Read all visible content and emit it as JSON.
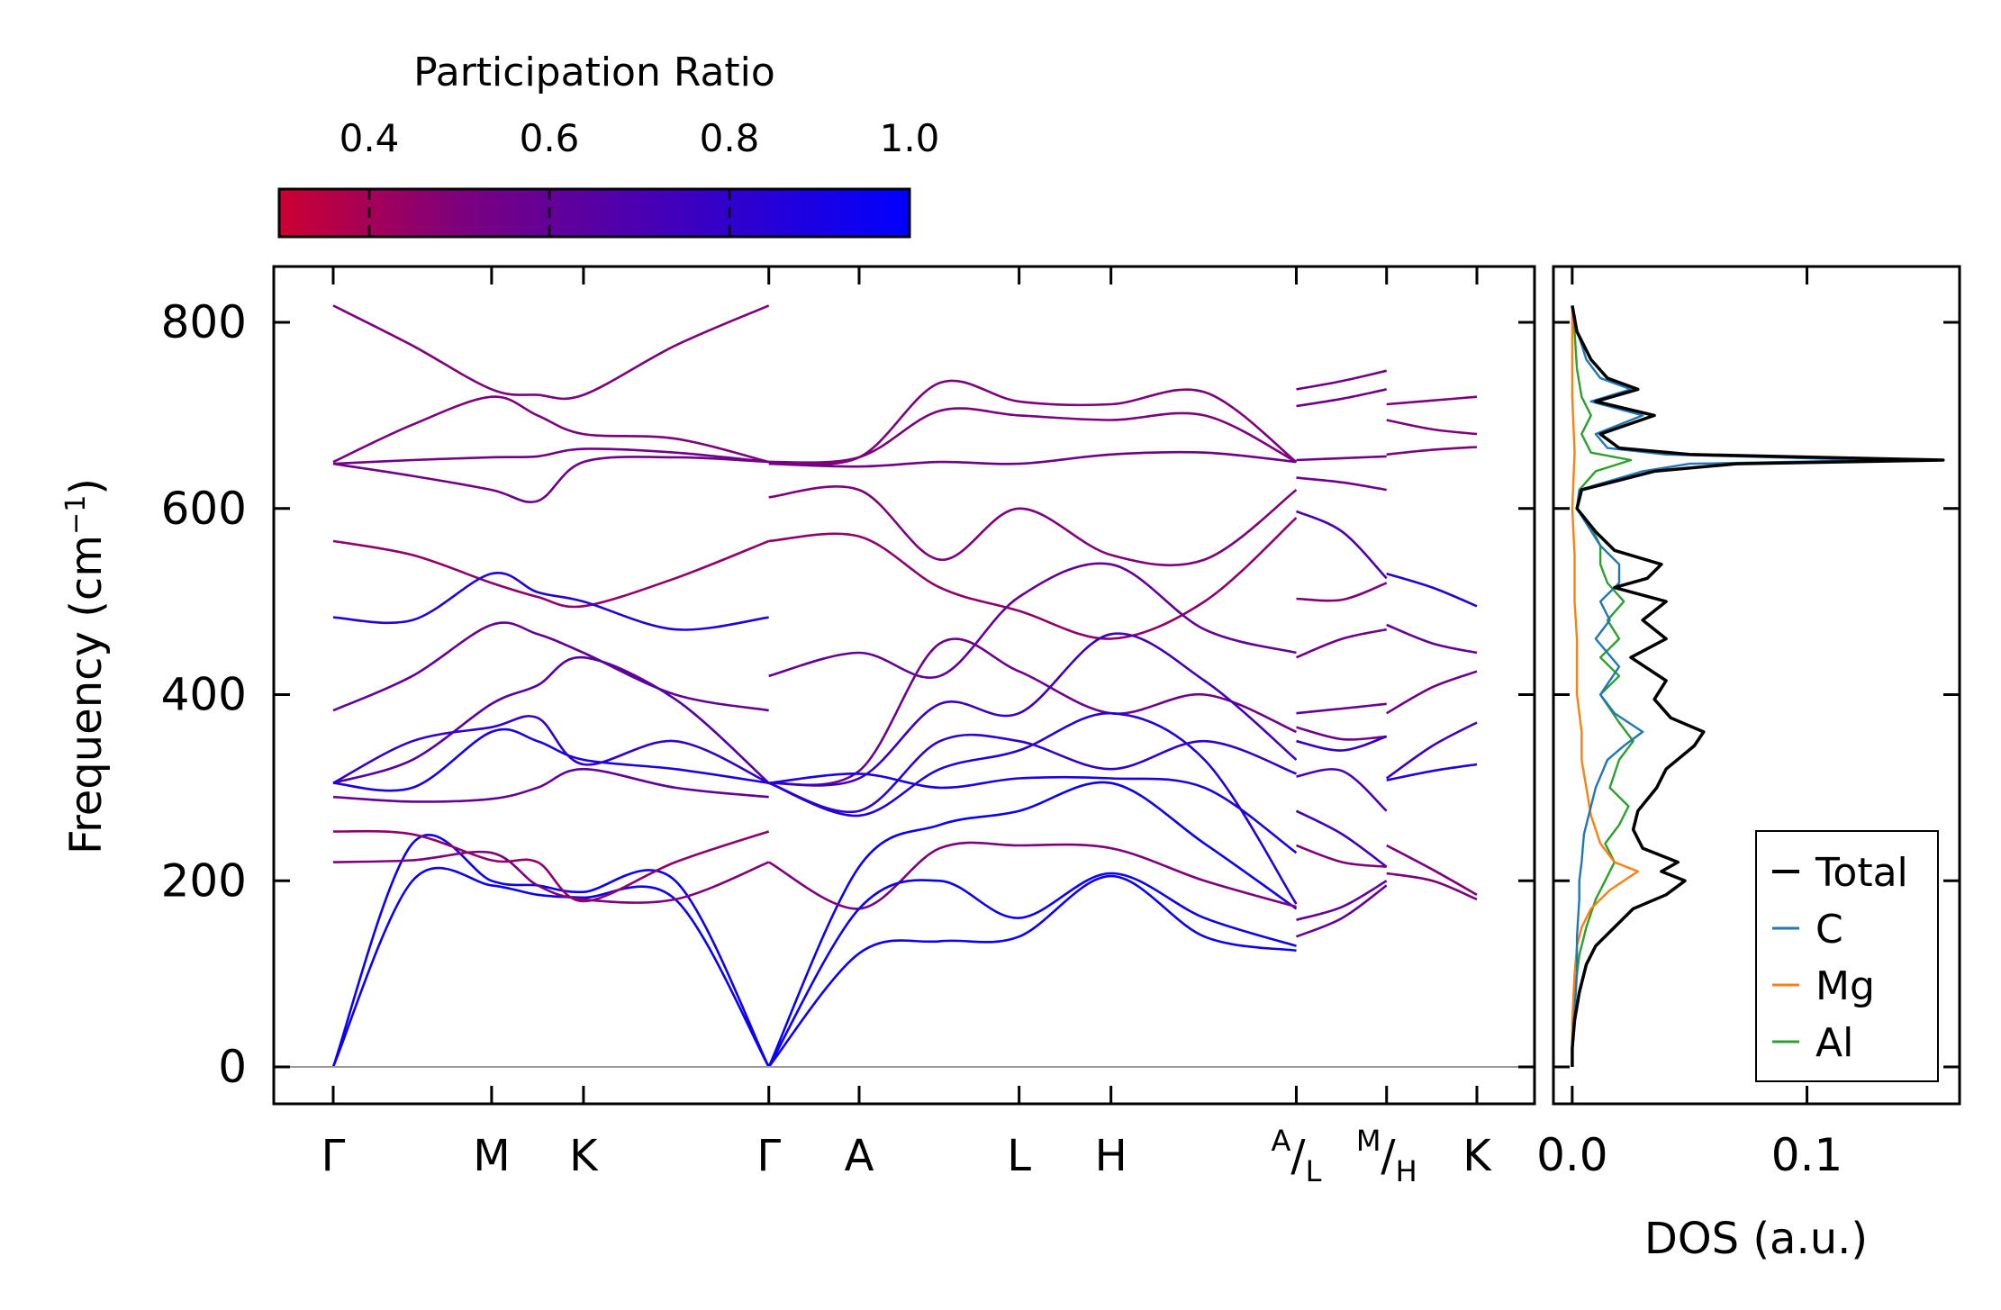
{
  "chart_data": [
    {
      "type": "line",
      "title": "",
      "xlabel": "",
      "ylabel": "Frequency (cm⁻¹)",
      "ylabel_main": "Frequency (cm",
      "ylabel_sup": "−1",
      "ylabel_close": ")",
      "ylim": [
        -40,
        855
      ],
      "yticks": [
        0,
        200,
        400,
        600,
        800
      ],
      "ytick_labels": [
        "0",
        "200",
        "400",
        "600",
        "800"
      ],
      "high_symmetry_points": [
        {
          "label": "Γ",
          "sub": "",
          "x": 0.0
        },
        {
          "label": "M",
          "sub": "",
          "x": 1.0
        },
        {
          "label": "K",
          "sub": "",
          "x": 1.58
        },
        {
          "label": "Γ",
          "sub": "",
          "x": 2.75
        },
        {
          "label": "A",
          "sub": "",
          "x": 3.32
        },
        {
          "label": "L",
          "sub": "",
          "x": 4.33
        },
        {
          "label": "H",
          "sub": "",
          "x": 4.91
        },
        {
          "label": "A",
          "sub": "L",
          "x": 6.08
        },
        {
          "label": "M",
          "sub": "H",
          "x": 6.65
        },
        {
          "label": "K",
          "sub": "",
          "x": 7.22
        }
      ],
      "colorbar": {
        "label": "Participation Ratio",
        "range": [
          0.3,
          1.0
        ],
        "ticks": [
          0.4,
          0.6,
          0.8,
          1.0
        ],
        "tick_labels": [
          "0.4",
          "0.6",
          "0.8",
          "1.0"
        ],
        "low_color": "#cc0033",
        "mid_color": "#7a0080",
        "high_color": "#0000ff"
      },
      "segments": [
        {
          "name": "Γ-M-K-Γ",
          "x": [
            0.0,
            0.5,
            1.0,
            1.29,
            1.58,
            2.16,
            2.75
          ],
          "bands": [
            {
              "pr": 0.5,
              "y": [
                818,
                775,
                728,
                722,
                722,
                775,
                818
              ]
            },
            {
              "pr": 0.5,
              "y": [
                650,
                690,
                720,
                700,
                680,
                675,
                650
              ]
            },
            {
              "pr": 0.55,
              "y": [
                648,
                652,
                655,
                656,
                664,
                660,
                650
              ]
            },
            {
              "pr": 0.55,
              "y": [
                648,
                635,
                620,
                608,
                650,
                655,
                650
              ]
            },
            {
              "pr": 0.45,
              "y": [
                565,
                550,
                520,
                505,
                495,
                525,
                565
              ]
            },
            {
              "pr": 0.85,
              "y": [
                483,
                480,
                530,
                510,
                500,
                470,
                483
              ]
            },
            {
              "pr": 0.6,
              "y": [
                383,
                420,
                475,
                465,
                445,
                400,
                383
              ]
            },
            {
              "pr": 0.65,
              "y": [
                305,
                330,
                390,
                410,
                440,
                395,
                305
              ]
            },
            {
              "pr": 0.8,
              "y": [
                305,
                350,
                365,
                375,
                325,
                350,
                305
              ]
            },
            {
              "pr": 0.6,
              "y": [
                290,
                285,
                288,
                300,
                320,
                300,
                290
              ]
            },
            {
              "pr": 0.9,
              "y": [
                305,
                300,
                360,
                350,
                330,
                320,
                305
              ]
            },
            {
              "pr": 0.95,
              "y": [
                0,
                240,
                200,
                195,
                188,
                200,
                0
              ]
            },
            {
              "pr": 0.95,
              "y": [
                0,
                200,
                195,
                185,
                182,
                180,
                0
              ]
            },
            {
              "pr": 0.5,
              "y": [
                220,
                222,
                230,
                195,
                180,
                180,
                220
              ]
            },
            {
              "pr": 0.45,
              "y": [
                253,
                250,
                222,
                220,
                178,
                220,
                253
              ]
            }
          ]
        },
        {
          "name": "Γ-A-L-H-A",
          "x": [
            2.75,
            3.32,
            3.83,
            4.33,
            4.91,
            5.5,
            6.08
          ],
          "bands": [
            {
              "pr": 0.5,
              "y": [
                650,
                655,
                735,
                715,
                712,
                725,
                650
              ]
            },
            {
              "pr": 0.5,
              "y": [
                650,
                655,
                705,
                700,
                695,
                700,
                650
              ]
            },
            {
              "pr": 0.55,
              "y": [
                648,
                645,
                650,
                648,
                658,
                660,
                650
              ]
            },
            {
              "pr": 0.5,
              "y": [
                612,
                620,
                545,
                600,
                550,
                545,
                620
              ]
            },
            {
              "pr": 0.45,
              "y": [
                565,
                570,
                515,
                490,
                460,
                500,
                590
              ]
            },
            {
              "pr": 0.6,
              "y": [
                420,
                445,
                420,
                505,
                540,
                470,
                445
              ]
            },
            {
              "pr": 0.55,
              "y": [
                305,
                318,
                455,
                425,
                380,
                400,
                360
              ]
            },
            {
              "pr": 0.75,
              "y": [
                305,
                310,
                390,
                380,
                465,
                415,
                330
              ]
            },
            {
              "pr": 0.8,
              "y": [
                305,
                275,
                350,
                350,
                320,
                350,
                315
              ]
            },
            {
              "pr": 0.9,
              "y": [
                305,
                315,
                300,
                310,
                310,
                300,
                230
              ]
            },
            {
              "pr": 0.85,
              "y": [
                305,
                270,
                320,
                340,
                380,
                330,
                175
              ]
            },
            {
              "pr": 0.95,
              "y": [
                0,
                215,
                260,
                275,
                305,
                240,
                170
              ]
            },
            {
              "pr": 0.5,
              "y": [
                220,
                170,
                235,
                238,
                235,
                200,
                172
              ]
            },
            {
              "pr": 0.95,
              "y": [
                0,
                170,
                200,
                160,
                208,
                160,
                130
              ]
            },
            {
              "pr": 0.95,
              "y": [
                0,
                122,
                135,
                140,
                205,
                140,
                125
              ]
            }
          ]
        },
        {
          "name": "L-M",
          "x": [
            6.08,
            6.37,
            6.65
          ],
          "bands": [
            {
              "pr": 0.55,
              "y": [
                728,
                737,
                748
              ]
            },
            {
              "pr": 0.55,
              "y": [
                710,
                718,
                728
              ]
            },
            {
              "pr": 0.55,
              "y": [
                652,
                654,
                656
              ]
            },
            {
              "pr": 0.55,
              "y": [
                633,
                628,
                620
              ]
            },
            {
              "pr": 0.7,
              "y": [
                597,
                575,
                525
              ]
            },
            {
              "pr": 0.5,
              "y": [
                503,
                502,
                520
              ]
            },
            {
              "pr": 0.55,
              "y": [
                440,
                460,
                470
              ]
            },
            {
              "pr": 0.6,
              "y": [
                380,
                385,
                390
              ]
            },
            {
              "pr": 0.55,
              "y": [
                365,
                352,
                355
              ]
            },
            {
              "pr": 0.8,
              "y": [
                350,
                340,
                355
              ]
            },
            {
              "pr": 0.7,
              "y": [
                312,
                318,
                275
              ]
            },
            {
              "pr": 0.75,
              "y": [
                275,
                250,
                215
              ]
            },
            {
              "pr": 0.5,
              "y": [
                238,
                220,
                215
              ]
            },
            {
              "pr": 0.6,
              "y": [
                158,
                172,
                200
              ]
            },
            {
              "pr": 0.6,
              "y": [
                140,
                160,
                195
              ]
            }
          ]
        },
        {
          "name": "H-K",
          "x": [
            6.65,
            6.94,
            7.22
          ],
          "bands": [
            {
              "pr": 0.5,
              "y": [
                712,
                716,
                720
              ]
            },
            {
              "pr": 0.5,
              "y": [
                695,
                685,
                680
              ]
            },
            {
              "pr": 0.5,
              "y": [
                658,
                663,
                666
              ]
            },
            {
              "pr": 0.85,
              "y": [
                530,
                515,
                495
              ]
            },
            {
              "pr": 0.6,
              "y": [
                475,
                455,
                445
              ]
            },
            {
              "pr": 0.55,
              "y": [
                380,
                408,
                425
              ]
            },
            {
              "pr": 0.75,
              "y": [
                310,
                345,
                370
              ]
            },
            {
              "pr": 0.85,
              "y": [
                308,
                318,
                325
              ]
            },
            {
              "pr": 0.5,
              "y": [
                238,
                212,
                185
              ]
            },
            {
              "pr": 0.5,
              "y": [
                208,
                200,
                180
              ]
            }
          ]
        }
      ]
    },
    {
      "type": "line",
      "title": "",
      "xlabel": "DOS (a.u.)",
      "ylabel": "",
      "xlim": [
        -0.008,
        0.165
      ],
      "xticks": [
        0.0,
        0.1
      ],
      "xtick_labels": [
        "0.0",
        "0.1"
      ],
      "legend_position": "bottom-right",
      "series": [
        {
          "name": "Total",
          "color": "#000000",
          "y": [
            0,
            20,
            50,
            80,
            110,
            130,
            150,
            170,
            185,
            200,
            210,
            220,
            235,
            255,
            275,
            300,
            320,
            345,
            360,
            375,
            395,
            415,
            440,
            460,
            480,
            500,
            515,
            525,
            540,
            555,
            575,
            600,
            620,
            640,
            648,
            652,
            658,
            665,
            680,
            700,
            715,
            728,
            740,
            760,
            790,
            818
          ],
          "x": [
            0.0,
            0.0,
            0.001,
            0.003,
            0.006,
            0.01,
            0.018,
            0.026,
            0.04,
            0.048,
            0.038,
            0.045,
            0.03,
            0.026,
            0.028,
            0.036,
            0.04,
            0.052,
            0.056,
            0.042,
            0.035,
            0.04,
            0.025,
            0.04,
            0.03,
            0.04,
            0.018,
            0.032,
            0.038,
            0.018,
            0.01,
            0.002,
            0.004,
            0.035,
            0.07,
            0.158,
            0.05,
            0.02,
            0.012,
            0.035,
            0.01,
            0.028,
            0.015,
            0.008,
            0.002,
            0.0
          ]
        },
        {
          "name": "C",
          "color": "#1f77b4",
          "y": [
            0,
            20,
            60,
            100,
            140,
            180,
            200,
            220,
            250,
            280,
            300,
            330,
            345,
            360,
            380,
            400,
            430,
            460,
            480,
            500,
            520,
            540,
            560,
            600,
            620,
            640,
            648,
            652,
            658,
            665,
            680,
            700,
            715,
            728,
            740,
            760,
            800,
            818
          ],
          "x": [
            0.0,
            0.0,
            0.001,
            0.002,
            0.002,
            0.003,
            0.003,
            0.004,
            0.005,
            0.008,
            0.01,
            0.015,
            0.022,
            0.03,
            0.018,
            0.012,
            0.02,
            0.01,
            0.016,
            0.012,
            0.02,
            0.02,
            0.012,
            0.002,
            0.003,
            0.03,
            0.05,
            0.13,
            0.04,
            0.015,
            0.01,
            0.03,
            0.008,
            0.025,
            0.012,
            0.006,
            0.001,
            0.0
          ]
        },
        {
          "name": "Mg",
          "color": "#ff7f0e",
          "y": [
            0,
            50,
            100,
            130,
            150,
            170,
            190,
            200,
            210,
            220,
            240,
            270,
            300,
            330,
            360,
            380,
            400,
            430,
            460,
            500,
            550,
            600,
            660,
            720,
            818
          ],
          "x": [
            0.0,
            0.0,
            0.001,
            0.002,
            0.004,
            0.008,
            0.016,
            0.022,
            0.028,
            0.018,
            0.012,
            0.008,
            0.006,
            0.004,
            0.004,
            0.003,
            0.002,
            0.002,
            0.002,
            0.001,
            0.001,
            0.0,
            0.001,
            0.0,
            0.0
          ]
        },
        {
          "name": "Al",
          "color": "#2ca02c",
          "y": [
            0,
            30,
            80,
            120,
            150,
            180,
            200,
            220,
            240,
            260,
            280,
            300,
            330,
            350,
            370,
            400,
            420,
            440,
            460,
            480,
            500,
            520,
            540,
            560,
            580,
            600,
            620,
            640,
            652,
            660,
            680,
            700,
            720,
            750,
            790,
            818
          ],
          "x": [
            0.0,
            0.0,
            0.001,
            0.003,
            0.006,
            0.01,
            0.014,
            0.018,
            0.014,
            0.02,
            0.024,
            0.016,
            0.02,
            0.026,
            0.02,
            0.012,
            0.02,
            0.012,
            0.02,
            0.015,
            0.022,
            0.015,
            0.012,
            0.012,
            0.008,
            0.002,
            0.003,
            0.01,
            0.025,
            0.008,
            0.004,
            0.008,
            0.004,
            0.002,
            0.001,
            0.0
          ]
        }
      ]
    }
  ]
}
